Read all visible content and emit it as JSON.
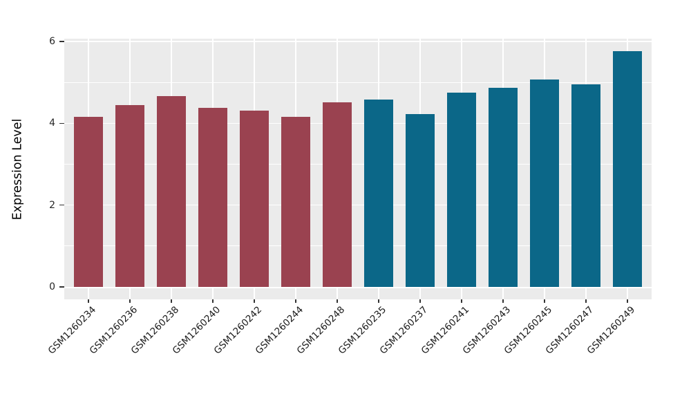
{
  "chart_data": {
    "type": "bar",
    "title": "",
    "xlabel": "",
    "ylabel": "Expression Level",
    "ylim": [
      0,
      6.07
    ],
    "yticks_major": [
      0,
      2,
      4,
      6
    ],
    "yticks_minor": [
      1,
      3,
      5
    ],
    "grid": {
      "horizontal_major": true,
      "horizontal_minor": true,
      "vertical_at_categories": true,
      "grid_color": "#FFFFFF",
      "panel_background": "#EBEBEB"
    },
    "legend_position": "none",
    "tick_mark_color": "#333333",
    "tick_text_color": "#262626",
    "axis_title_color": "#000000",
    "x_tick_label_rotation_deg": 45,
    "groups": {
      "group1": "#9A4250",
      "group2": "#0B6788"
    },
    "categories": [
      "GSM1260234",
      "GSM1260236",
      "GSM1260238",
      "GSM1260240",
      "GSM1260242",
      "GSM1260244",
      "GSM1260248",
      "GSM1260235",
      "GSM1260237",
      "GSM1260241",
      "GSM1260243",
      "GSM1260245",
      "GSM1260247",
      "GSM1260249"
    ],
    "bars": [
      {
        "label": "GSM1260234",
        "value": 4.16,
        "group": "group1"
      },
      {
        "label": "GSM1260236",
        "value": 4.44,
        "group": "group1"
      },
      {
        "label": "GSM1260238",
        "value": 4.66,
        "group": "group1"
      },
      {
        "label": "GSM1260240",
        "value": 4.38,
        "group": "group1"
      },
      {
        "label": "GSM1260242",
        "value": 4.31,
        "group": "group1"
      },
      {
        "label": "GSM1260244",
        "value": 4.16,
        "group": "group1"
      },
      {
        "label": "GSM1260248",
        "value": 4.51,
        "group": "group1"
      },
      {
        "label": "GSM1260235",
        "value": 4.58,
        "group": "group2"
      },
      {
        "label": "GSM1260237",
        "value": 4.23,
        "group": "group2"
      },
      {
        "label": "GSM1260241",
        "value": 4.75,
        "group": "group2"
      },
      {
        "label": "GSM1260243",
        "value": 4.87,
        "group": "group2"
      },
      {
        "label": "GSM1260245",
        "value": 5.07,
        "group": "group2"
      },
      {
        "label": "GSM1260247",
        "value": 4.95,
        "group": "group2"
      },
      {
        "label": "GSM1260249",
        "value": 5.76,
        "group": "group2"
      }
    ]
  }
}
